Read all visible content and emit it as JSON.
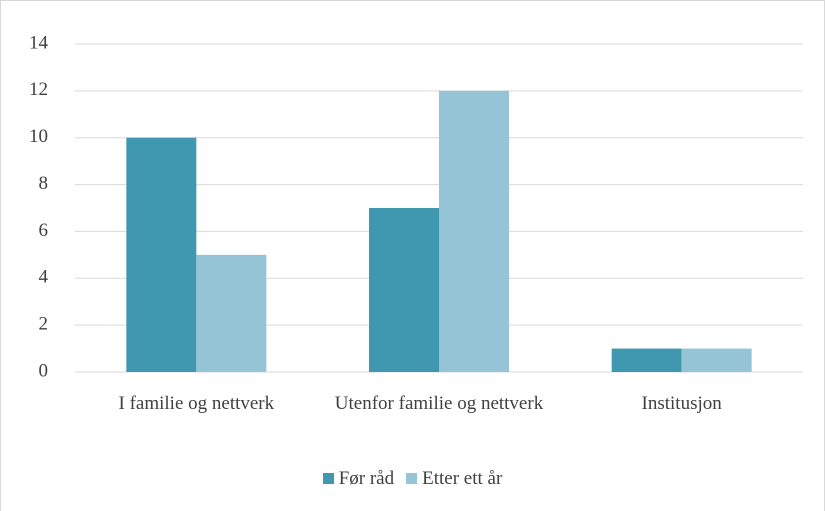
{
  "chart_data": {
    "type": "bar",
    "categories": [
      "I familie og nettverk",
      "Utenfor familie og nettverk",
      "Institusjon"
    ],
    "series": [
      {
        "name": "Før råd",
        "color": "#4097b0",
        "values": [
          10,
          7,
          1
        ]
      },
      {
        "name": "Etter ett år",
        "color": "#94c4d5",
        "values": [
          5,
          12,
          1
        ]
      }
    ],
    "ylim": [
      0,
      14
    ],
    "yticks": [
      0,
      2,
      4,
      6,
      8,
      10,
      12,
      14
    ],
    "grid": true,
    "legend": "bottom"
  }
}
